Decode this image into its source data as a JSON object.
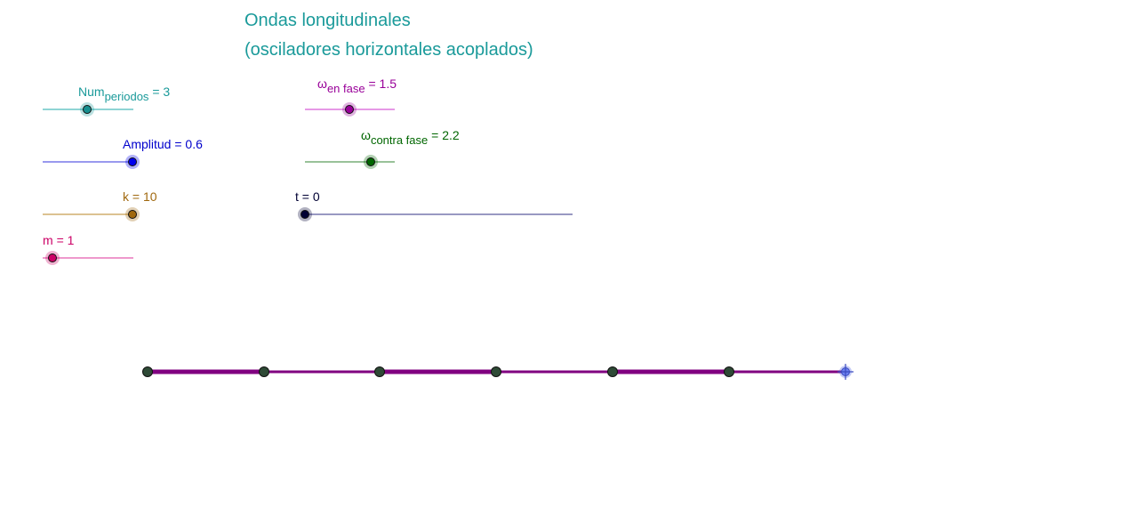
{
  "title": {
    "line1": "Ondas longitudinales",
    "line2": "(osciladores horizontales acoplados)"
  },
  "sliders": {
    "num_periodos": {
      "name": "Num",
      "sub": "periodos",
      "value_text": "= 3",
      "value": 3,
      "min": 1,
      "max": 5,
      "color": "#1a9a9a",
      "knob": "#178f8f"
    },
    "amplitud": {
      "name": "Amplitud",
      "value_text": "= 0.6",
      "value": 0.6,
      "min": 0,
      "max": 0.6,
      "color": "#0000cc",
      "knob": "#0000ee"
    },
    "k": {
      "name": "k",
      "value_text": "= 10",
      "value": 10,
      "min": 0,
      "max": 10,
      "color": "#a0680e",
      "knob": "#a0680e"
    },
    "m": {
      "name": "m",
      "value_text": "= 1",
      "value": 1,
      "min": 1,
      "max": 10,
      "color": "#cc0066",
      "knob": "#cc0066"
    },
    "omega_en_fase": {
      "name": "ω",
      "sub": "en fase",
      "value_text": "= 1.5",
      "value": 1.5,
      "min": 0,
      "max": 3,
      "color": "#990099",
      "knob": "#990099"
    },
    "omega_contra_fase": {
      "name": "ω",
      "sub": "contra fase",
      "value_text": "= 2.2",
      "value": 2.2,
      "min": 0,
      "max": 3,
      "color": "#006600",
      "knob": "#006600"
    },
    "t": {
      "name": "t",
      "value_text": "= 0",
      "value": 0,
      "min": 0,
      "max": 30,
      "color": "#000033",
      "knob": "#000033"
    }
  },
  "chain": {
    "line_color": "#800080",
    "mass_color": "#2e4a36",
    "masses": 7
  }
}
